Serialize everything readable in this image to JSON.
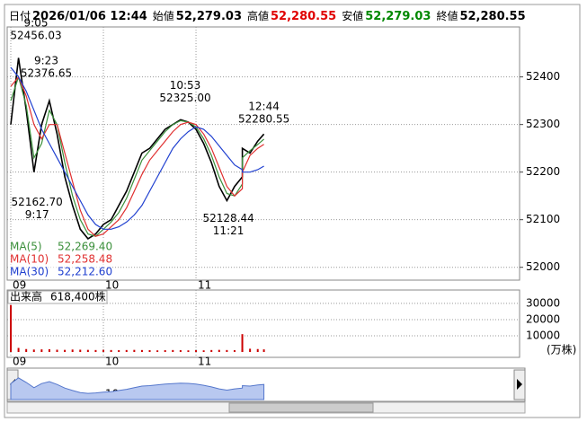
{
  "header": {
    "items": [
      {
        "label": "日付",
        "value": "2026/01/06 12:44",
        "color": "#000000"
      },
      {
        "label": "始値",
        "value": "52,279.03",
        "color": "#000000"
      },
      {
        "label": "高値",
        "value": "52,280.55",
        "color": "#e00000"
      },
      {
        "label": "安値",
        "value": "52,279.03",
        "color": "#008800"
      },
      {
        "label": "終値",
        "value": "52,280.55",
        "color": "#000000"
      }
    ]
  },
  "chart_data": [
    {
      "type": "line",
      "x": [
        "09:00",
        "09:05",
        "09:10",
        "09:15",
        "09:20",
        "09:25",
        "09:30",
        "09:35",
        "09:40",
        "09:45",
        "09:50",
        "09:55",
        "10:00",
        "10:05",
        "10:10",
        "10:15",
        "10:20",
        "10:25",
        "10:30",
        "10:35",
        "10:40",
        "10:45",
        "10:50",
        "10:55",
        "11:00",
        "11:05",
        "11:10",
        "11:15",
        "11:20",
        "11:25",
        "11:30",
        "12:30",
        "12:35",
        "12:40",
        "12:44"
      ],
      "series": [
        {
          "color": "#000000",
          "values": [
            52300,
            52440,
            52330,
            52200,
            52300,
            52350,
            52280,
            52190,
            52130,
            52080,
            52060,
            52070,
            52090,
            52100,
            52130,
            52160,
            52200,
            52240,
            52250,
            52270,
            52290,
            52300,
            52310,
            52305,
            52290,
            52260,
            52220,
            52170,
            52140,
            52170,
            52190,
            52250,
            52240,
            52265,
            52280
          ]
        },
        {
          "name": "MA(5)",
          "legend_value": "52,269.40",
          "color": "#3a8f3a",
          "values": [
            52350,
            52400,
            52340,
            52230,
            52260,
            52330,
            52300,
            52220,
            52150,
            52100,
            52070,
            52065,
            52080,
            52095,
            52115,
            52145,
            52185,
            52225,
            52245,
            52265,
            52285,
            52300,
            52308,
            52305,
            52295,
            52270,
            52235,
            52190,
            52155,
            52150,
            52175,
            52230,
            52245,
            52258,
            52269.4
          ]
        },
        {
          "name": "MA(10)",
          "legend_value": "52,258.48",
          "color": "#e03030",
          "values": [
            52380,
            52400,
            52360,
            52300,
            52270,
            52300,
            52300,
            52240,
            52180,
            52120,
            52080,
            52065,
            52070,
            52085,
            52100,
            52125,
            52160,
            52195,
            52225,
            52245,
            52265,
            52285,
            52300,
            52305,
            52300,
            52280,
            52250,
            52210,
            52170,
            52150,
            52165,
            52200,
            52235,
            52250,
            52258.48
          ]
        },
        {
          "name": "MA(30)",
          "legend_value": "52,212.60",
          "color": "#2040d0",
          "values": [
            52420,
            52400,
            52370,
            52330,
            52290,
            52260,
            52230,
            52200,
            52170,
            52140,
            52110,
            52090,
            52080,
            52080,
            52085,
            52095,
            52110,
            52130,
            52160,
            52190,
            52220,
            52250,
            52270,
            52285,
            52295,
            52290,
            52275,
            52255,
            52235,
            52215,
            52205,
            52200,
            52200,
            52205,
            52212.6
          ]
        }
      ],
      "annotations": [
        {
          "lines": [
            "9:05",
            "52456.03"
          ]
        },
        {
          "lines": [
            "9:23",
            "52376.65"
          ]
        },
        {
          "lines": [
            "10:53",
            "52325.00"
          ]
        },
        {
          "lines": [
            "12:44",
            "52280.55"
          ]
        },
        {
          "lines": [
            "52162.70",
            "9:17"
          ]
        },
        {
          "lines": [
            "52128.44",
            "11:21"
          ]
        }
      ],
      "ylim": [
        51973,
        52505
      ],
      "yticks": [
        52000,
        52100,
        52200,
        52300,
        52400
      ],
      "xticks": [
        {
          "value": "09:00",
          "label": "09"
        },
        {
          "value": "10:00",
          "label": "10"
        },
        {
          "value": "11:00",
          "label": "11"
        }
      ],
      "grid": true
    },
    {
      "type": "bar",
      "title": "出来高",
      "total": "618,400株",
      "unit": "(万株)",
      "color": "#cc0000",
      "values": [
        29000,
        2500,
        1800,
        1500,
        1600,
        1700,
        1400,
        1300,
        1500,
        1400,
        1300,
        1200,
        1300,
        1200,
        1100,
        1200,
        1300,
        1200,
        1100,
        1000,
        1100,
        1200,
        1100,
        1000,
        1100,
        1000,
        1200,
        1300,
        1200,
        1100,
        1500,
        11000,
        2000,
        1800,
        1600
      ],
      "ylim": [
        0,
        34400
      ],
      "yticks": [
        10000,
        20000,
        30000
      ],
      "grid": true
    }
  ]
}
